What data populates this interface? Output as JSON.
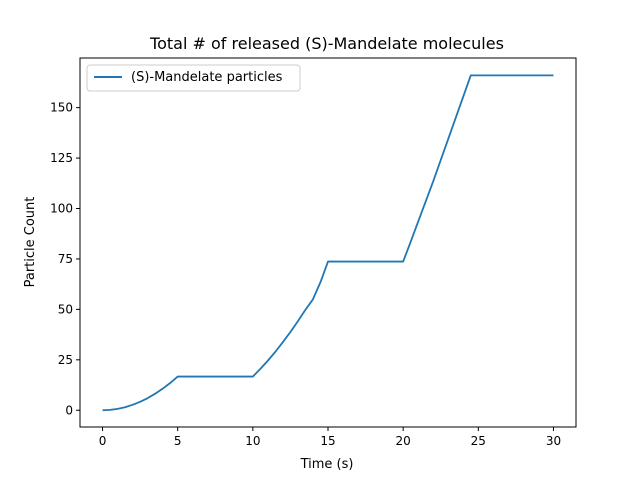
{
  "chart_data": {
    "type": "line",
    "title": "Total # of released (S)-Mandelate molecules",
    "xlabel": "Time (s)",
    "ylabel": "Particle Count",
    "xlim": [
      -1.5,
      31.5
    ],
    "ylim": [
      -8.3,
      174.6
    ],
    "x_ticks": [
      0,
      5,
      10,
      15,
      20,
      25,
      30
    ],
    "y_ticks": [
      0,
      25,
      50,
      75,
      100,
      125,
      150
    ],
    "grid": false,
    "legend_position": "top-left",
    "series": [
      {
        "name": "(S)-Mandelate particles",
        "color": "#1f77b4",
        "x": [
          0,
          0.5,
          1,
          1.5,
          2,
          2.5,
          3,
          3.5,
          4,
          4.5,
          5,
          10,
          10.5,
          11,
          11.5,
          12,
          12.5,
          13,
          13.5,
          14,
          14.5,
          15,
          20,
          20.5,
          21,
          21.5,
          22,
          22.5,
          23,
          23.5,
          24,
          24.5,
          25,
          30
        ],
        "y": [
          0,
          0.2,
          0.7,
          1.5,
          2.7,
          4.2,
          6.0,
          8.2,
          10.7,
          13.5,
          16.7,
          16.7,
          20.5,
          24.6,
          29.0,
          33.8,
          38.8,
          44.2,
          49.8,
          55.0,
          63.5,
          73.7,
          73.7,
          83.5,
          93.5,
          103.5,
          113.5,
          124.0,
          134.5,
          145.0,
          155.5,
          166.0,
          166.0,
          166.0
        ]
      }
    ]
  }
}
